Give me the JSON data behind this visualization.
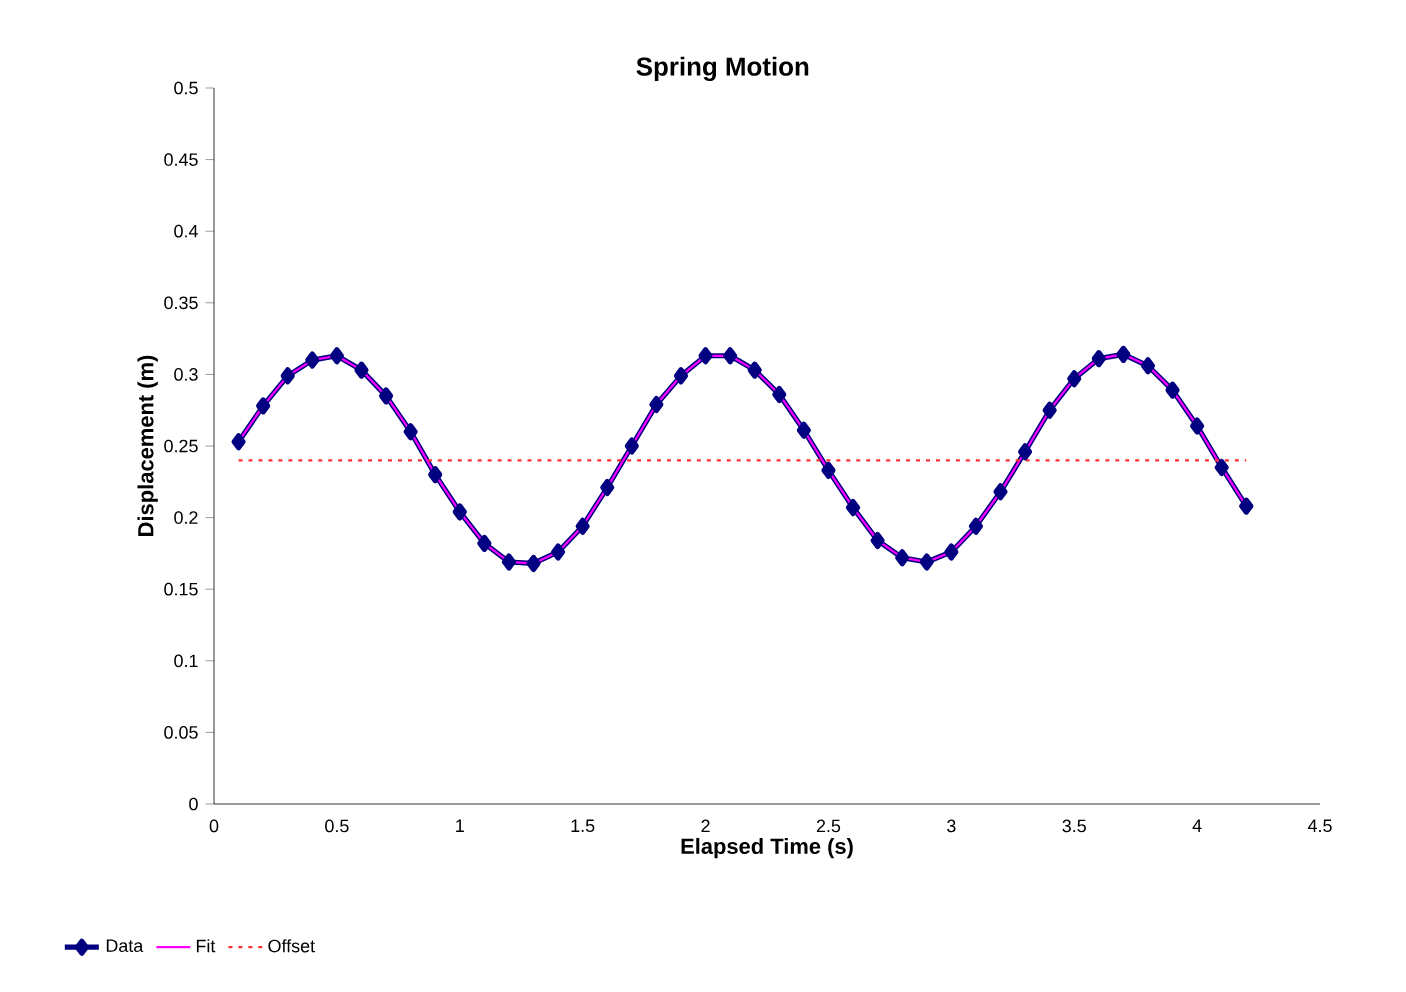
{
  "chart_data": {
    "type": "line",
    "title": "Spring Motion",
    "xlabel": "Elapsed Time (s)",
    "ylabel": "Displacement (m)",
    "xlim": [
      0,
      4.5
    ],
    "ylim": [
      0,
      0.5
    ],
    "xticks": [
      0,
      0.5,
      1,
      1.5,
      2,
      2.5,
      3,
      3.5,
      4,
      4.5
    ],
    "yticks": [
      0,
      0.05,
      0.1,
      0.15,
      0.2,
      0.25,
      0.3,
      0.35,
      0.4,
      0.45,
      0.5
    ],
    "grid": false,
    "legend": "bottom left",
    "x": [
      0.1,
      0.2,
      0.3,
      0.4,
      0.5,
      0.6,
      0.7,
      0.8,
      0.9,
      1.0,
      1.1,
      1.2,
      1.3,
      1.4,
      1.5,
      1.6,
      1.7,
      1.8,
      1.9,
      2.0,
      2.1,
      2.2,
      2.3,
      2.4,
      2.5,
      2.6,
      2.7,
      2.8,
      2.9,
      3.0,
      3.1,
      3.2,
      3.3,
      3.4,
      3.5,
      3.6,
      3.7,
      3.8,
      3.9,
      4.0,
      4.1,
      4.2
    ],
    "series": [
      {
        "name": "Data",
        "color": "#000080",
        "marker": "diamond",
        "line_style": "solid",
        "values": [
          0.253,
          0.278,
          0.299,
          0.31,
          0.313,
          0.303,
          0.285,
          0.26,
          0.23,
          0.204,
          0.182,
          0.169,
          0.168,
          0.176,
          0.194,
          0.221,
          0.25,
          0.279,
          0.299,
          0.313,
          0.313,
          0.303,
          0.286,
          0.261,
          0.233,
          0.207,
          0.184,
          0.172,
          0.169,
          0.176,
          0.194,
          0.218,
          0.246,
          0.275,
          0.297,
          0.311,
          0.314,
          0.306,
          0.289,
          0.264,
          0.235,
          0.208
        ]
      },
      {
        "name": "Fit",
        "color": "#ff00ff",
        "marker": "none",
        "line_style": "solid",
        "values": [
          0.253,
          0.278,
          0.299,
          0.31,
          0.313,
          0.303,
          0.285,
          0.26,
          0.23,
          0.204,
          0.182,
          0.169,
          0.168,
          0.176,
          0.194,
          0.221,
          0.25,
          0.279,
          0.299,
          0.313,
          0.313,
          0.303,
          0.286,
          0.261,
          0.233,
          0.207,
          0.184,
          0.172,
          0.169,
          0.176,
          0.194,
          0.218,
          0.246,
          0.275,
          0.297,
          0.311,
          0.314,
          0.306,
          0.289,
          0.264,
          0.235,
          0.208
        ]
      },
      {
        "name": "Offset",
        "color": "#ff3030",
        "marker": "none",
        "line_style": "dashed",
        "x": [
          0.1,
          4.2
        ],
        "values": [
          0.24,
          0.24
        ]
      }
    ]
  }
}
